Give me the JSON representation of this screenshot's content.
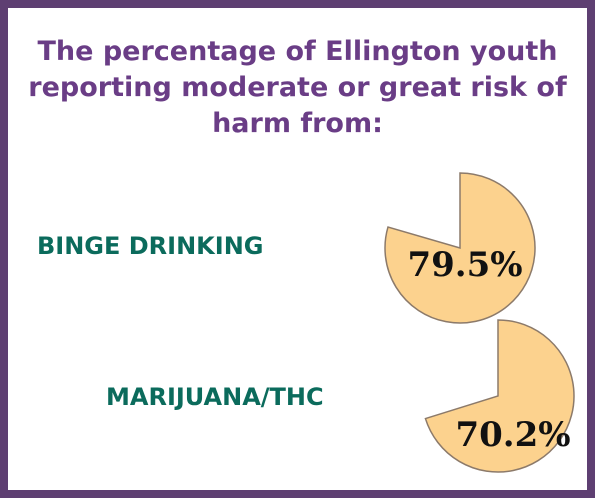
{
  "title": "The percentage of Ellington youth reporting moderate or great risk of harm from:",
  "colors": {
    "border": "#5e3f72",
    "title": "#6a3d86",
    "label": "#0b6b5c",
    "pie_fill": "#fcd28e",
    "pie_stroke": "#8c7a6a"
  },
  "chart_data": [
    {
      "type": "pie",
      "title": "",
      "category": "BINGE DRINKING",
      "value": 79.5,
      "value_label": "79.5%"
    },
    {
      "type": "pie",
      "title": "",
      "category": "MARIJUANA/THC",
      "value": 70.2,
      "value_label": "70.2%"
    }
  ]
}
